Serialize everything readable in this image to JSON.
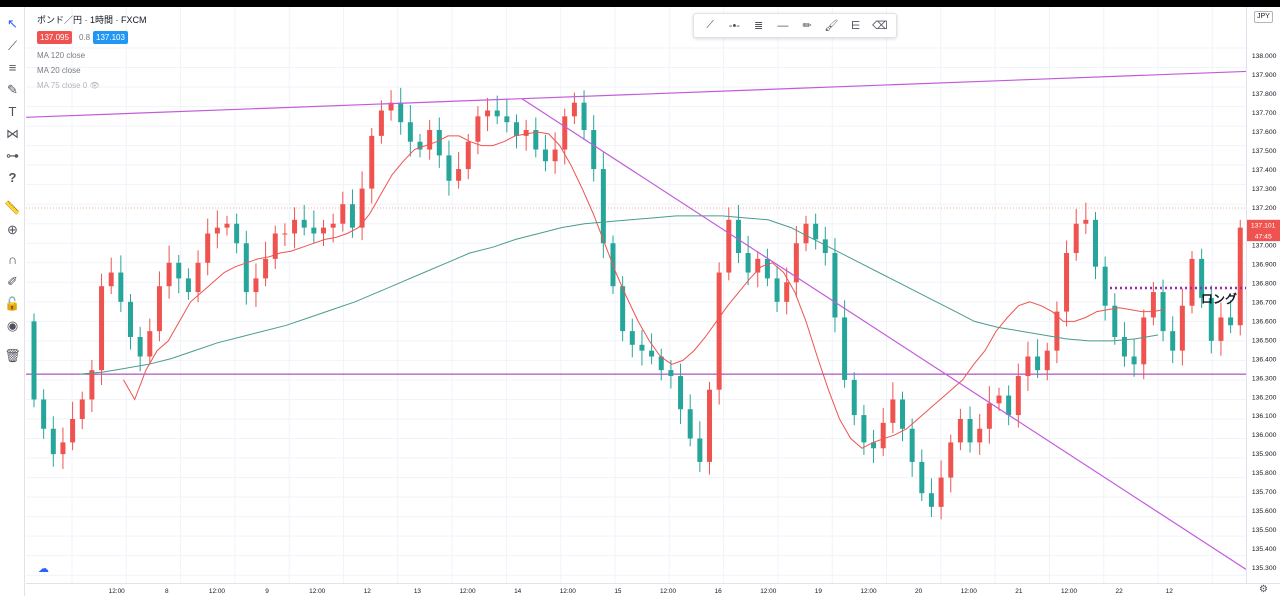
{
  "legend": {
    "title": "ポンド／円 · 1時間 · FXCM",
    "bid": "137.095",
    "spread": "0.8",
    "ask": "137.103",
    "ma120": "MA 120 close",
    "ma20": "MA 20 close",
    "ma75": "MA 75 close 0"
  },
  "colors": {
    "up": "#ef5350",
    "down": "#26a69a",
    "ma20": "#ef5350",
    "ma120": "#4a9c8c",
    "trend": "#c35bd9",
    "support": "#9c27b0",
    "long_dots": "#9c27b0",
    "accent": "#2962ff"
  },
  "annotation": {
    "long": "ロング"
  },
  "currency": "JPY",
  "price_tag": {
    "price": "137.101",
    "countdown": "47:45"
  },
  "toolbar_icons": [
    "cursor-icon",
    "trend-line-icon",
    "horizontal-lines-icon",
    "brush-icon",
    "text-icon",
    "pattern-icon",
    "measure-lines-icon",
    "question-icon",
    "ruler-icon",
    "zoom-icon",
    "magnet-icon",
    "lock-drawing-icon",
    "lock-icon",
    "eye-icon",
    "trash-icon"
  ],
  "float_icons": [
    "trend-line-icon",
    "horizontal-ray-icon",
    "parallel-channel-icon",
    "horizontal-line-icon",
    "pencil-icon",
    "brush-icon",
    "fib-icon",
    "eraser-icon"
  ],
  "chart_data": {
    "type": "candlestick",
    "symbol": "ポンド／円",
    "timeframe": "1時間",
    "ylim": [
      135.26,
      138.21
    ],
    "yticks": [
      "138.000",
      "137.900",
      "137.800",
      "137.700",
      "137.600",
      "137.500",
      "137.400",
      "137.300",
      "137.200",
      "137.100",
      "137.000",
      "136.900",
      "136.800",
      "136.700",
      "136.600",
      "136.500",
      "136.400",
      "136.300",
      "136.200",
      "136.100",
      "136.000",
      "135.900",
      "135.800",
      "135.700",
      "135.600",
      "135.500",
      "135.400",
      "135.300"
    ],
    "xticks": [
      "12:00",
      "8",
      "12:00",
      "9",
      "12:00",
      "12",
      "13",
      "12:00",
      "14",
      "12:00",
      "15",
      "12:00",
      "16",
      "12:00",
      "19",
      "12:00",
      "20",
      "12:00",
      "21",
      "12:00",
      "22",
      "12"
    ],
    "closes": [
      136.2,
      136.05,
      135.92,
      135.98,
      136.1,
      136.2,
      136.35,
      136.78,
      136.85,
      136.7,
      136.52,
      136.42,
      136.55,
      136.78,
      136.9,
      136.82,
      136.75,
      136.9,
      137.05,
      137.08,
      137.1,
      137.0,
      136.75,
      136.82,
      136.92,
      137.05,
      137.05,
      137.12,
      137.08,
      137.05,
      137.08,
      137.1,
      137.2,
      137.08,
      137.28,
      137.55,
      137.68,
      137.72,
      137.62,
      137.52,
      137.48,
      137.58,
      137.45,
      137.32,
      137.38,
      137.52,
      137.65,
      137.68,
      137.65,
      137.62,
      137.55,
      137.58,
      137.48,
      137.42,
      137.48,
      137.65,
      137.72,
      137.58,
      137.38,
      137.0,
      136.78,
      136.55,
      136.48,
      136.45,
      136.42,
      136.35,
      136.32,
      136.15,
      136.0,
      135.88,
      136.25,
      136.85,
      137.12,
      136.95,
      136.85,
      136.92,
      136.82,
      136.7,
      136.8,
      137.0,
      137.1,
      137.02,
      136.95,
      136.62,
      136.3,
      136.12,
      135.98,
      135.95,
      136.08,
      136.2,
      136.05,
      135.88,
      135.72,
      135.65,
      135.8,
      135.98,
      136.1,
      135.98,
      136.05,
      136.18,
      136.22,
      136.12,
      136.32,
      136.42,
      136.35,
      136.45,
      136.65,
      136.95,
      137.1,
      137.12,
      136.88,
      136.68,
      136.52,
      136.42,
      136.38,
      136.62,
      136.75,
      136.55,
      136.45,
      136.68,
      136.92,
      136.72,
      136.5,
      136.62,
      136.58,
      137.08,
      137.101
    ],
    "opens": [
      136.6,
      136.2,
      136.05,
      135.92,
      135.98,
      136.1,
      136.2,
      136.35,
      136.78,
      136.85,
      136.7,
      136.52,
      136.42,
      136.55,
      136.78,
      136.9,
      136.82,
      136.75,
      136.9,
      137.05,
      137.08,
      137.1,
      137.0,
      136.75,
      136.82,
      136.92,
      137.05,
      137.05,
      137.12,
      137.08,
      137.05,
      137.08,
      137.1,
      137.2,
      137.08,
      137.28,
      137.55,
      137.68,
      137.72,
      137.62,
      137.52,
      137.48,
      137.58,
      137.45,
      137.32,
      137.38,
      137.52,
      137.65,
      137.68,
      137.65,
      137.62,
      137.55,
      137.58,
      137.48,
      137.42,
      137.48,
      137.65,
      137.72,
      137.58,
      137.38,
      137.0,
      136.78,
      136.55,
      136.48,
      136.45,
      136.42,
      136.35,
      136.32,
      136.15,
      136.0,
      135.88,
      136.25,
      136.85,
      137.12,
      136.95,
      136.85,
      136.92,
      136.82,
      136.7,
      136.8,
      137.0,
      137.1,
      137.02,
      136.95,
      136.62,
      136.3,
      136.12,
      135.98,
      135.95,
      136.08,
      136.2,
      136.05,
      135.88,
      135.72,
      135.65,
      135.8,
      135.98,
      136.1,
      135.98,
      136.05,
      136.18,
      136.22,
      136.12,
      136.32,
      136.42,
      136.35,
      136.45,
      136.65,
      136.95,
      137.1,
      137.12,
      136.88,
      136.68,
      136.52,
      136.42,
      136.38,
      136.62,
      136.75,
      136.55,
      136.45,
      136.68,
      136.92,
      136.72,
      136.5,
      136.62,
      136.58,
      136.68
    ],
    "ma20": [
      null,
      null,
      null,
      null,
      null,
      null,
      null,
      null,
      136.3,
      136.2,
      136.35,
      136.45,
      136.5,
      136.6,
      136.7,
      136.75,
      136.8,
      136.85,
      136.88,
      136.9,
      136.92,
      136.93,
      136.95,
      136.96,
      136.98,
      137.0,
      137.02,
      137.03,
      137.05,
      137.08,
      137.15,
      137.25,
      137.35,
      137.42,
      137.48,
      137.5,
      137.52,
      137.55,
      137.55,
      137.52,
      137.5,
      137.5,
      137.52,
      137.55,
      137.56,
      137.57,
      137.56,
      137.5,
      137.4,
      137.28,
      137.15,
      137.0,
      136.85,
      136.72,
      136.6,
      136.5,
      136.42,
      136.38,
      136.4,
      136.45,
      136.52,
      136.6,
      136.68,
      136.75,
      136.82,
      136.88,
      136.9,
      136.85,
      136.75,
      136.6,
      136.42,
      136.25,
      136.1,
      136.0,
      135.95,
      135.98,
      136.0,
      136.02,
      136.05,
      136.1,
      136.15,
      136.2,
      136.25,
      136.3,
      136.38,
      136.45,
      136.55,
      136.62,
      136.68,
      136.7,
      136.68,
      136.65,
      136.6,
      136.6,
      136.62,
      136.65,
      136.66,
      136.67,
      136.66,
      136.65,
      136.65,
      136.66
    ],
    "ma120": [
      null,
      null,
      136.33,
      136.34,
      136.36,
      136.38,
      136.41,
      136.45,
      136.49,
      136.52,
      136.55,
      136.58,
      136.62,
      136.66,
      136.7,
      136.75,
      136.8,
      136.85,
      136.9,
      136.95,
      136.98,
      137.02,
      137.05,
      137.08,
      137.1,
      137.11,
      137.12,
      137.13,
      137.14,
      137.14,
      137.14,
      137.13,
      137.12,
      137.08,
      137.02,
      136.96,
      136.9,
      136.84,
      136.78,
      136.72,
      136.66,
      136.6,
      136.57,
      136.55,
      136.53,
      136.51,
      136.5,
      136.5,
      136.51,
      136.53
    ]
  }
}
